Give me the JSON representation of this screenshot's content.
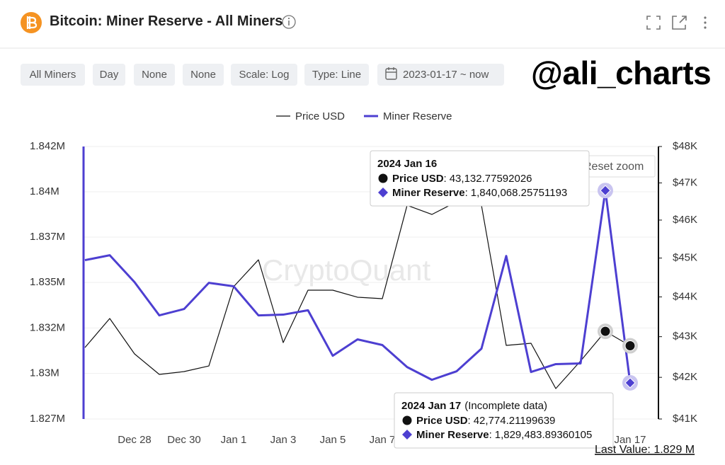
{
  "header": {
    "title": "Bitcoin: Miner Reserve - All Miners"
  },
  "toolbar": {
    "buttons": [
      "All Miners",
      "Day",
      "None",
      "None",
      "Scale: Log",
      "Type: Line",
      "2023-01-17 ~ now"
    ]
  },
  "watermark": "@ali_charts",
  "chart_data": {
    "type": "line",
    "watermark": "CryptoQuant",
    "reset_zoom": "Reset zoom",
    "last_value": "Last Value: 1.829 M",
    "tooltip_separator": ":",
    "tooltips": [
      {
        "title": "2024 Jan 16"
      },
      {
        "title": "2024 Jan 17",
        "note": "(Incomplete data)"
      }
    ],
    "categories": [
      null,
      null,
      "Dec 28",
      null,
      "Dec 30",
      null,
      "Jan 1",
      null,
      "Jan 3",
      null,
      "Jan 5",
      null,
      "Jan 7",
      null,
      null,
      null,
      null,
      null,
      null,
      null,
      null,
      null,
      "Jan 17"
    ],
    "log": true,
    "grid": true,
    "ylim": [
      1827500,
      1842500
    ],
    "yticks": [
      {
        "value": 1827500,
        "label": "1.827M"
      },
      {
        "value": 1830000,
        "label": "1.83M"
      },
      {
        "value": 1832500,
        "label": "1.832M"
      },
      {
        "value": 1835000,
        "label": "1.835M"
      },
      {
        "value": 1837500,
        "label": "1.837M"
      },
      {
        "value": 1840000,
        "label": "1.84M"
      },
      {
        "value": 1842500,
        "label": "1.842M"
      }
    ],
    "y2lim": [
      41000,
      48000
    ],
    "y2ticks": [
      {
        "value": 41000,
        "label": "$41K"
      },
      {
        "value": 42000,
        "label": "$42K"
      },
      {
        "value": 43000,
        "label": "$43K"
      },
      {
        "value": 44000,
        "label": "$44K"
      },
      {
        "value": 45000,
        "label": "$45K"
      },
      {
        "value": 46000,
        "label": "$46K"
      },
      {
        "value": 47000,
        "label": "$47K"
      },
      {
        "value": 48000,
        "label": "$48K"
      }
    ],
    "series": [
      {
        "name": "Price USD",
        "color": "#111111",
        "axis": "y2",
        "values": [
          42731,
          43454,
          42574,
          42071,
          42140,
          42278,
          44262,
          44955,
          42853,
          44172,
          44172,
          43992,
          43956,
          46395,
          46150,
          46491,
          46395,
          42783,
          42836,
          41728,
          42400,
          43132.77592026,
          42774.21199639
        ],
        "value_labels": [
          null,
          null,
          null,
          null,
          null,
          null,
          null,
          null,
          null,
          null,
          null,
          null,
          null,
          null,
          null,
          null,
          null,
          null,
          null,
          null,
          null,
          "43,132.77592026",
          "42,774.21199639"
        ]
      },
      {
        "name": "Miner Reserve",
        "color": "#4d3fd1",
        "values": [
          1836230,
          1836500,
          1835020,
          1833190,
          1833540,
          1834980,
          1834790,
          1833190,
          1833230,
          1833470,
          1830970,
          1831870,
          1831560,
          1830350,
          1829650,
          1830120,
          1831360,
          1836460,
          1830080,
          1830510,
          1830550,
          1840068.25751193,
          1829483.89360105
        ],
        "value_labels": [
          null,
          null,
          null,
          null,
          null,
          null,
          null,
          null,
          null,
          null,
          null,
          null,
          null,
          null,
          null,
          null,
          null,
          null,
          null,
          null,
          null,
          "1,840,068.25751193",
          "1,829,483.89360105"
        ]
      }
    ]
  }
}
